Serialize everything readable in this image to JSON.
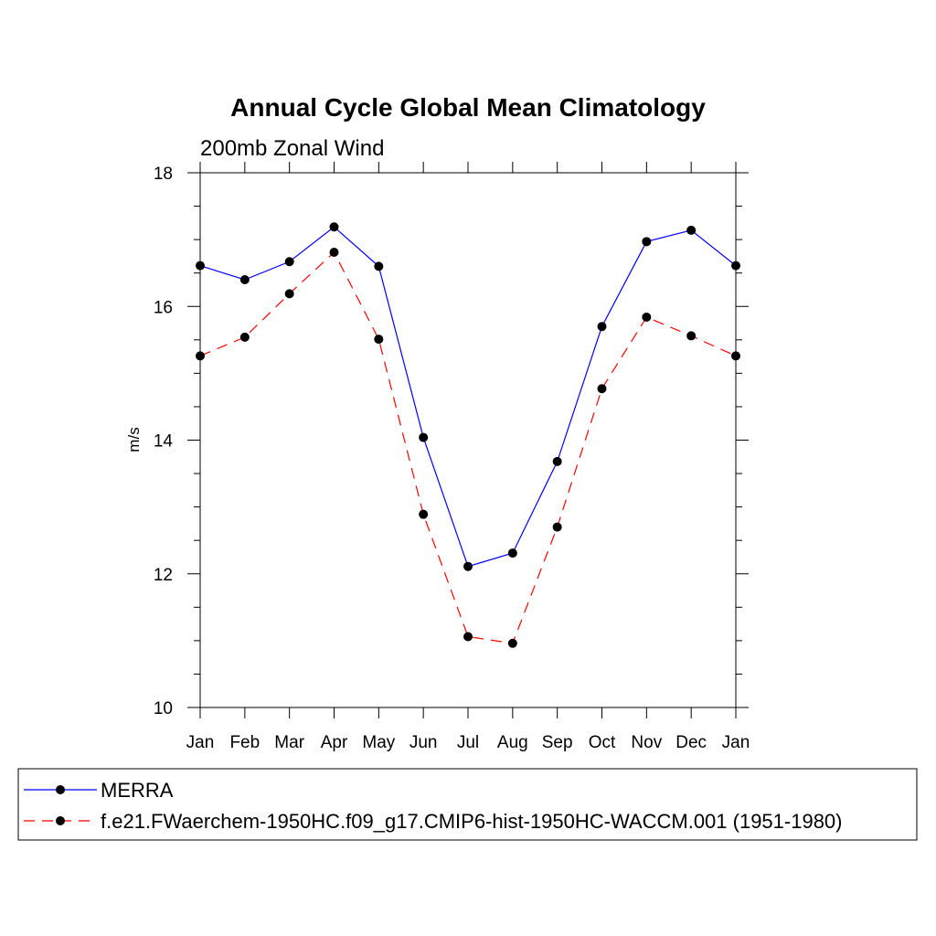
{
  "chart_data": {
    "type": "line",
    "title": "Annual Cycle Global Mean Climatology",
    "subtitle": "200mb Zonal Wind",
    "xlabel": "",
    "ylabel": "m/s",
    "categories": [
      "Jan",
      "Feb",
      "Mar",
      "Apr",
      "May",
      "Jun",
      "Jul",
      "Aug",
      "Sep",
      "Oct",
      "Nov",
      "Dec",
      "Jan"
    ],
    "ylim": [
      10,
      18
    ],
    "yticks": [
      "10",
      "12",
      "14",
      "16",
      "18"
    ],
    "grid": false,
    "legend_position": "bottom",
    "series": [
      {
        "name": "MERRA",
        "color": "#0000ff",
        "dash": "solid",
        "values": [
          16.61,
          16.4,
          16.67,
          17.19,
          16.6,
          14.04,
          12.11,
          12.31,
          13.68,
          15.7,
          16.97,
          17.14,
          16.61
        ]
      },
      {
        "name": "f.e21.FWaerchem-1950HC.f09_g17.CMIP6-hist-1950HC-WACCM.001 (1951-1980)",
        "color": "#ff0000",
        "dash": "dashed",
        "values": [
          15.26,
          15.54,
          16.19,
          16.81,
          15.51,
          12.89,
          11.06,
          10.96,
          12.7,
          14.77,
          15.84,
          15.56,
          15.26
        ]
      }
    ]
  }
}
